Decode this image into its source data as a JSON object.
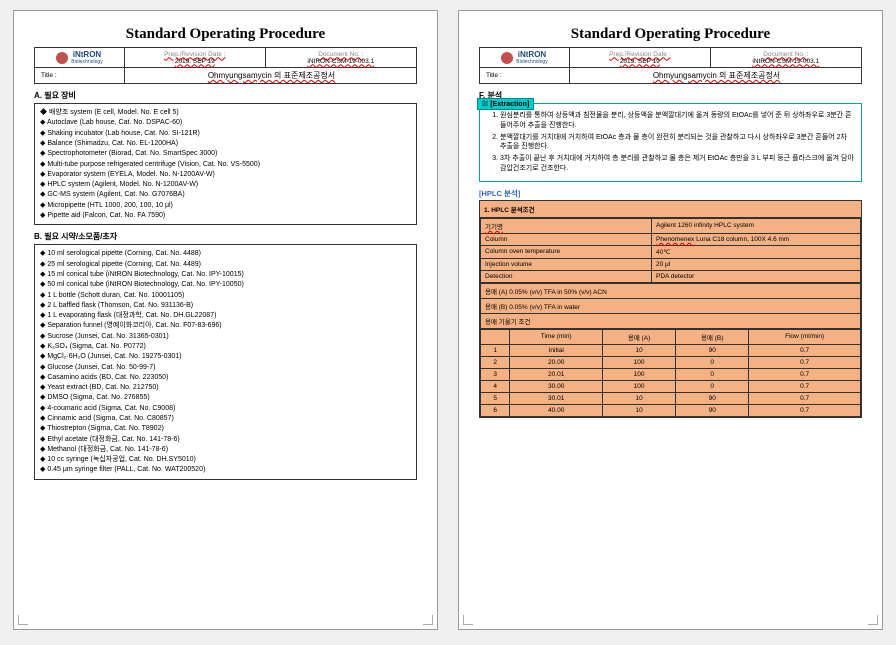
{
  "header": {
    "mainTitle": "Standard Operating Procedure",
    "logoMain": "iNtRON",
    "logoSub": "Biotechnology",
    "prepLabel": "Prep./Revision Date :",
    "prepVal": "2019. SEP 19",
    "docLabel": "Document No. :",
    "docVal": "iNtRON-CSM-19-003.1",
    "titleLabel": "Title :",
    "docTitle": "Ohmyungsamycin 의 표준제조공정서"
  },
  "p1": {
    "secA": "A. 필요 장비",
    "a": [
      "배양조 system (E cell, Model. No. E cell 5)",
      "Autoclave (Lab house, Cat. No. DSPAC-60)",
      "Shaking incubator (Lab house, Cat. No. SI-121R)",
      "Balance (Shimadzu, Cat. No. EL-1200HA)",
      "Spectrophotometer (Biorad, Cat. No. SmartSpec 3000)",
      "Multi-tube purpose refrigerated centrifuge (Vision, Cat. No. VS-5500)",
      "Evaporator system (EYELA, Model. No. N-1200AV-W)",
      "HPLC system (Agilent, Model. No. N-1200AV-W)",
      "GC-MS system (Agilent, Cat. No. G7076BA)",
      "Micropipette (HTL 1000, 200, 100, 10 μl)",
      "Pipette aid (Falcon, Cat. No. FA 7590)"
    ],
    "secB": "B. 필요 시약/소모품/초자",
    "b": [
      "10 ml serological pipette (Corning, Cat. No. 4488)",
      "25 ml serological pipette (Corning, Cat. No. 4489)",
      "15 ml conical tube (iNtRON Biotechnology, Cat. No. IPY-10015)",
      "50 ml conical tube (iNtRON Biotechnology, Cat. No. IPY-10050)",
      "1 L bottle (Schott duran, Cat. No. 10001105)",
      "2 L baffled flask (Thomson, Cat. No. 931136-B)",
      "1 L evaporating flask (대정과학, Cat. No. DH.GL22087)",
      "Separation funnel (영예이화코리아, Cat. No. F07-83-696)",
      "Sucrose (Junsei, Cat. No. 31365-0301)",
      "K₂SO₄ (Sigma, Cat. No. P0772)",
      "MgCl₂·6H₂O (Junsei, Cat. No. 19275-0301)",
      "Glucose (Junsei, Cat. No. 50-99-7)",
      "Casamino acids (BD, Cat. No. 223050)",
      "Yeast extract (BD, Cat. No. 212750)",
      "DMSO (Sigma, Cat. No. 276855)",
      "4-coumaric acid (Sigma, Cat. No. C9008)",
      "Cinnamic acid (Sigma, Cat. No. C80857)",
      "Thiostrepton (Sigma, Cat. No. T8902)",
      "Ethyl acetate (대정화금, Cat. No. 141-78-6)",
      "Methanol (대정화금, Cat. No. 141-78-6)",
      "10 cc syringe (녹십자공업, Cat. No. DH.SY5010)",
      "0.45 μm syringe filter (PALL, Cat. No. WAT200520)"
    ]
  },
  "p2": {
    "secF": "F. 분석",
    "extractTag": "[Extraction]",
    "ext": [
      "원심분리를 통하여 상등액과 침전물을 분리, 상등액을 분액깔대기에 옮겨 동량의 EtOAc를 넣어 준 뒤 상하좌우로 3분간 흔들어주어 추출을 진행한다.",
      "분액깔대기를 거치대에 거치하여 EtOAc 층과 물 층이 완전히 분리되는 것을 관찰하고 다시 상하좌우로 3분간 흔들어 2차 추출을 진행한다.",
      "3차 추출이 끝난 후 거치대에 거치하여 층 분리를 관찰하고 물 층은 제거 EtOAc 층만을 3 L 부피 둥근 플라스크에 옮겨 담아 감압건조기로 건조한다."
    ],
    "hplcLabel": "[HPLC 분석]",
    "hplcHead": "1. HPLC 분석조건",
    "rows": [
      [
        "기기명",
        "Agilent 1260 infinity HPLC system"
      ],
      [
        "Column",
        "Phenomenex Luna C18 column, 100X 4.6 mm"
      ],
      [
        "Column oven temperature",
        "40℃"
      ],
      [
        "Injection volume",
        "20 μl"
      ],
      [
        "Detection",
        "PDA detector"
      ]
    ],
    "solA": "용매 (A) 0.05% (v/v) TFA in 50% (v/v) ACN",
    "solB": "용매 (B) 0.05% (v/v) TFA in water",
    "gradHead": "용매 기울기 조건",
    "gradCols": [
      "",
      "Time (min)",
      "용매 (A)",
      "용매 (B)",
      "Flow (ml/min)"
    ],
    "grad": [
      [
        "1",
        "Initial",
        "10",
        "90",
        "0.7"
      ],
      [
        "2",
        "20.00",
        "100",
        "0",
        "0.7"
      ],
      [
        "3",
        "20.01",
        "100",
        "0",
        "0.7"
      ],
      [
        "4",
        "30.00",
        "100",
        "0",
        "0.7"
      ],
      [
        "5",
        "30.01",
        "10",
        "90",
        "0.7"
      ],
      [
        "6",
        "40.00",
        "10",
        "90",
        "0.7"
      ]
    ]
  }
}
